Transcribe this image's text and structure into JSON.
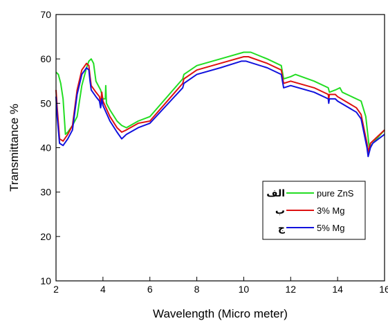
{
  "chart_data": {
    "type": "line",
    "title": "",
    "xlabel": "Wavelength (Micro meter)",
    "ylabel": "Transmittance %",
    "xlim": [
      2,
      16
    ],
    "ylim": [
      10,
      70
    ],
    "xticks": [
      2,
      4,
      6,
      8,
      10,
      12,
      14,
      16
    ],
    "yticks": [
      10,
      20,
      30,
      40,
      50,
      60,
      70
    ],
    "grid": false,
    "legend_position": "bottom-right",
    "series": [
      {
        "name": "pure ZnS",
        "marker": "الف",
        "color": "#22dd22",
        "x": [
          2.0,
          2.1,
          2.2,
          2.3,
          2.4,
          2.5,
          2.7,
          2.9,
          3.1,
          3.3,
          3.4,
          3.5,
          3.6,
          3.7,
          3.9,
          4.0,
          4.1,
          4.12,
          4.15,
          4.3,
          4.6,
          4.8,
          5.0,
          5.5,
          6.0,
          7.4,
          7.45,
          8.0,
          9.0,
          10.0,
          10.3,
          11.0,
          11.6,
          11.7,
          12.0,
          12.2,
          13.0,
          13.6,
          13.65,
          13.9,
          14.1,
          14.2,
          15.0,
          15.2,
          15.35,
          15.5,
          16.0
        ],
        "y": [
          57,
          56.5,
          54.5,
          51,
          43,
          43.5,
          45,
          47,
          54,
          58,
          59.5,
          60,
          59,
          55,
          53,
          51,
          51,
          54,
          50,
          48.5,
          46,
          45,
          44.5,
          46,
          47,
          55.5,
          56.5,
          58.5,
          60,
          61.5,
          61.5,
          60,
          58.5,
          55.5,
          56,
          56.5,
          55,
          53.5,
          52.5,
          53,
          53.5,
          52.5,
          50.5,
          47,
          40,
          41,
          44
        ]
      },
      {
        "name": "3% Mg",
        "marker": "ب",
        "color": "#dd1111",
        "x": [
          2.0,
          2.05,
          2.15,
          2.3,
          2.5,
          2.7,
          2.9,
          3.1,
          3.3,
          3.4,
          3.45,
          3.5,
          3.7,
          3.85,
          3.9,
          3.95,
          4.0,
          4.3,
          4.6,
          4.8,
          5.0,
          5.5,
          6.0,
          7.4,
          7.45,
          8.0,
          9.0,
          10.0,
          10.2,
          11.0,
          11.6,
          11.7,
          12.0,
          13.0,
          13.6,
          13.62,
          13.65,
          13.9,
          14.0,
          14.8,
          15.0,
          15.25,
          15.3,
          15.4,
          15.5,
          16.0
        ],
        "y": [
          53,
          49,
          42,
          41.5,
          43,
          45,
          53,
          57.5,
          59,
          58.5,
          56,
          54,
          52.5,
          51.5,
          50,
          52.5,
          50.5,
          47,
          44.5,
          43.5,
          44,
          45.5,
          46,
          54.5,
          55.5,
          57.5,
          59,
          60.5,
          60.5,
          59,
          57.5,
          54.5,
          55,
          53.5,
          52,
          51,
          52,
          52,
          51.5,
          49,
          47.5,
          41,
          39,
          41,
          41.5,
          44
        ]
      },
      {
        "name": "5% Mg",
        "marker": "ج",
        "color": "#1111dd",
        "x": [
          2.0,
          2.05,
          2.15,
          2.3,
          2.5,
          2.7,
          2.9,
          3.1,
          3.3,
          3.4,
          3.45,
          3.5,
          3.7,
          3.85,
          3.9,
          3.95,
          4.0,
          4.3,
          4.6,
          4.8,
          5.0,
          5.5,
          6.0,
          7.4,
          7.45,
          8.0,
          9.0,
          9.9,
          10.1,
          11.0,
          11.6,
          11.7,
          12.0,
          13.0,
          13.6,
          13.62,
          13.65,
          13.9,
          14.0,
          14.8,
          15.0,
          15.25,
          15.3,
          15.4,
          15.5,
          16.0
        ],
        "y": [
          51.5,
          47,
          41,
          40.5,
          42,
          44,
          52,
          56.5,
          58,
          57.5,
          55,
          53,
          51.5,
          50.5,
          49,
          51,
          49.5,
          46,
          43.5,
          42,
          43,
          44.5,
          45.5,
          53.5,
          54.5,
          56.5,
          58,
          59.5,
          59.5,
          58,
          56.5,
          53.5,
          54,
          52.5,
          51,
          50,
          51,
          51,
          50.5,
          48,
          46.5,
          40,
          38,
          40,
          41,
          43
        ]
      }
    ]
  }
}
